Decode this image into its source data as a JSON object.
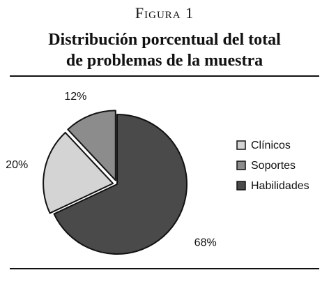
{
  "figure": {
    "label": "Figura 1",
    "title_line1": "Distribución porcentual del total",
    "title_line2": "de problemas de la muestra"
  },
  "chart_data": {
    "type": "pie",
    "title": "Distribución porcentual del total de problemas de la muestra",
    "categories": [
      "Clínicos",
      "Soportes",
      "Habilidades"
    ],
    "values": [
      20,
      12,
      68
    ],
    "value_labels": [
      "20%",
      "12%",
      "68%"
    ],
    "colors": [
      "#d4d4d4",
      "#8c8c8c",
      "#4a4a4a"
    ],
    "exploded": [
      "Clínicos",
      "Soportes"
    ],
    "legend_position": "right"
  }
}
